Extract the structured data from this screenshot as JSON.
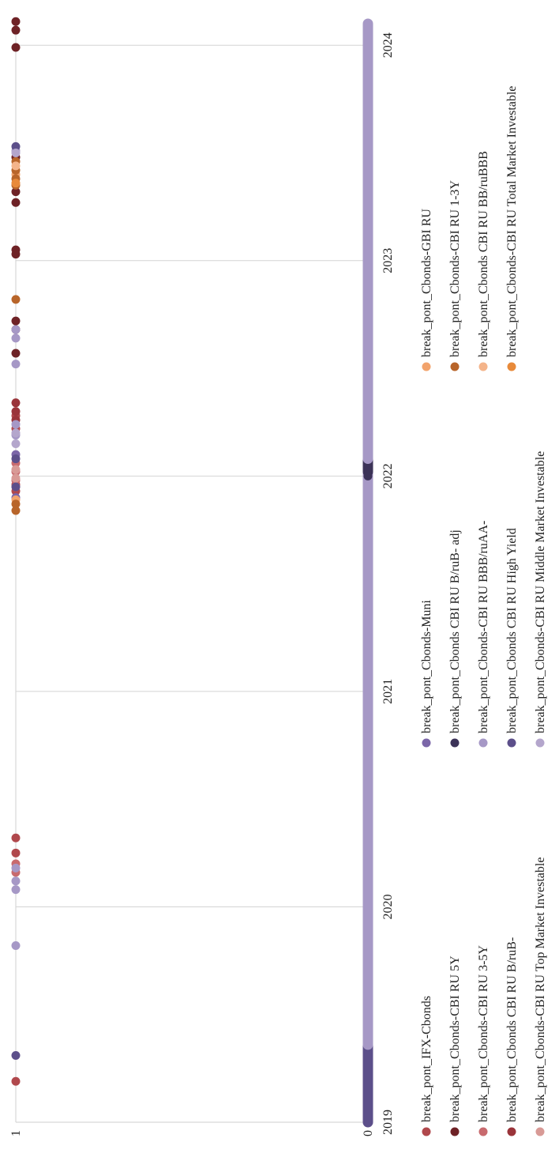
{
  "chart_data": {
    "type": "scatter",
    "orientation": "rotated-90-clockwise",
    "title": "",
    "xlabel": "",
    "ylabel": "",
    "x_ticks": [
      "2019",
      "2020",
      "2021",
      "2022",
      "2023",
      "2024"
    ],
    "x_range": [
      2019.0,
      2024.1
    ],
    "y_ticks": [
      "0",
      "1"
    ],
    "y_range": [
      0,
      1
    ],
    "grid": true,
    "legend_position": "bottom",
    "series": [
      {
        "name": "break_pont_IFX-Cbonds",
        "color": "#b0484c",
        "x": [
          2019.19,
          2020.25,
          2020.32,
          2021.93,
          2021.96,
          2022.22,
          2022.28
        ],
        "y": [
          1,
          1,
          1,
          1,
          1,
          1,
          1
        ]
      },
      {
        "name": "break_pont_Cbonds-CBI RU 5Y",
        "color": "#6e2226",
        "x": [
          2022.57,
          2022.68,
          2022.72,
          2023.03,
          2023.05,
          2023.27,
          2023.32,
          2023.48,
          2023.99,
          2024.07,
          2024.11
        ],
        "y": [
          1,
          1,
          1,
          1,
          1,
          1,
          1,
          1,
          1,
          1,
          1
        ]
      },
      {
        "name": "break_pont_Cbonds-CBI RU 3-5Y",
        "color": "#c86a6e",
        "x": [
          2020.16,
          2020.2,
          2021.98,
          2022.02,
          2022.06
        ],
        "y": [
          1,
          1,
          1,
          1,
          1
        ]
      },
      {
        "name": "break_pont_Cbonds CBI RU B/ruB-",
        "color": "#9a343a",
        "x": [
          2022.26,
          2022.3,
          2022.34
        ],
        "y": [
          1,
          1,
          1
        ]
      },
      {
        "name": "break_pont_Cbonds-CBI RU Top Market Investable",
        "color": "#d89a96",
        "x": [
          2021.95,
          2021.99,
          2022.03
        ],
        "y": [
          1,
          1,
          1
        ]
      },
      {
        "name": "break_pont_Cbonds-Muni",
        "color": "#7b66a8",
        "x": [
          2021.9,
          2022.1
        ],
        "y": [
          1,
          1
        ]
      },
      {
        "name": "break_pont_Cbonds CBI RU B/ruB- adj",
        "color": "#3c3358",
        "x": [
          2022.0
        ],
        "y": [
          0
        ]
      },
      {
        "name": "break_pont_Cbonds-CBI RU BBB/ruAA-",
        "color": "#a698c6",
        "x": [
          2019.82,
          2020.08,
          2020.12,
          2020.18,
          2022.19,
          2022.24,
          2022.52,
          2022.64,
          2022.68,
          2023.51
        ],
        "y": [
          1,
          1,
          1,
          1,
          1,
          1,
          1,
          1,
          1,
          1
        ]
      },
      {
        "name": "break_pont_Cbonds CBI RU High Yield",
        "color": "#5c4f8a",
        "x": [
          2019.31,
          2021.95,
          2022.08,
          2023.53
        ],
        "y": [
          1,
          1,
          1,
          1
        ]
      },
      {
        "name": "break_pont_Cbonds-CBI RU Middle Market Investable",
        "color": "#b4a6cc",
        "x": [
          2022.15,
          2022.2,
          2023.5
        ],
        "y": [
          1,
          1,
          1
        ]
      },
      {
        "name": "break_pont_Cbonds-GBI RU",
        "color": "#f2a36c",
        "x": [
          2021.89,
          2023.4
        ],
        "y": [
          1,
          1
        ]
      },
      {
        "name": "break_pont_Cbonds-CBI RU 1-3Y",
        "color": "#b8652a",
        "x": [
          2021.84,
          2021.87,
          2022.82,
          2023.35,
          2023.38,
          2023.42,
          2023.46
        ],
        "y": [
          1,
          1,
          1,
          1,
          1,
          1,
          1
        ]
      },
      {
        "name": "break_pont_Cbonds CBI RU BB/ruBBB",
        "color": "#f4b48a",
        "x": [
          2023.44
        ],
        "y": [
          1
        ]
      },
      {
        "name": "break_pont_Cbonds-CBI RU Total Market Investable",
        "color": "#e88a3a",
        "x": [
          2023.36
        ],
        "y": [
          1
        ]
      }
    ],
    "baseline_segments": [
      {
        "from": 2019.0,
        "to": 2019.36,
        "color": "#5c4f8a"
      },
      {
        "from": 2019.36,
        "to": 2022.02,
        "color": "#a698c6"
      },
      {
        "from": 2022.02,
        "to": 2022.08,
        "color": "#3c3358"
      },
      {
        "from": 2022.08,
        "to": 2024.1,
        "color": "#a698c6"
      }
    ]
  }
}
